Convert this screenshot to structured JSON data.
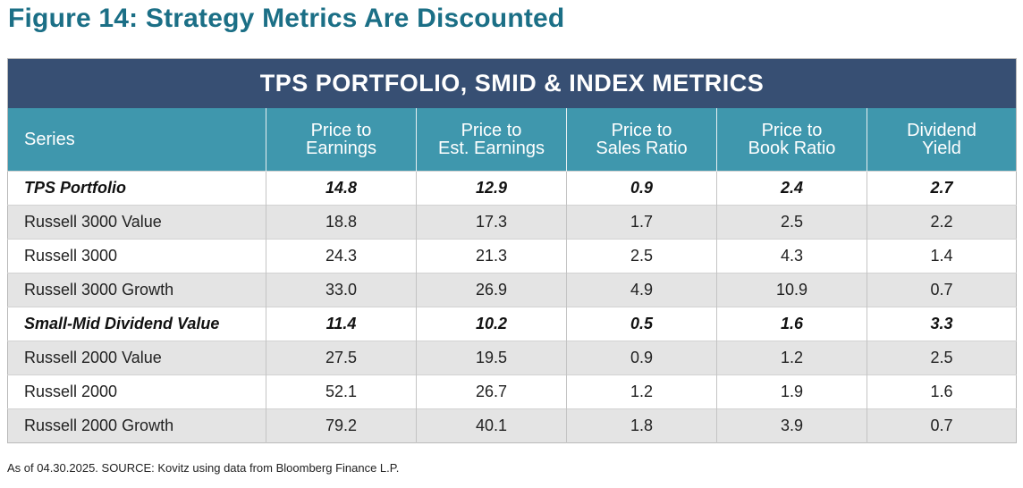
{
  "figure_title": "Figure 14: Strategy Metrics Are Discounted",
  "table": {
    "banner": "TPS PORTFOLIO, SMID & INDEX METRICS",
    "headers": [
      {
        "line1": "Series",
        "line2": ""
      },
      {
        "line1": "Price to",
        "line2": "Earnings"
      },
      {
        "line1": "Price to",
        "line2": "Est. Earnings"
      },
      {
        "line1": "Price to",
        "line2": "Sales Ratio"
      },
      {
        "line1": "Price to",
        "line2": "Book Ratio"
      },
      {
        "line1": "Dividend",
        "line2": "Yield"
      }
    ],
    "rows": [
      {
        "series": "TPS Portfolio",
        "pe": "14.8",
        "pest": "12.9",
        "ps": "0.9",
        "pb": "2.4",
        "dy": "2.7",
        "highlight": true
      },
      {
        "series": "Russell 3000 Value",
        "pe": "18.8",
        "pest": "17.3",
        "ps": "1.7",
        "pb": "2.5",
        "dy": "2.2",
        "highlight": false
      },
      {
        "series": "Russell 3000",
        "pe": "24.3",
        "pest": "21.3",
        "ps": "2.5",
        "pb": "4.3",
        "dy": "1.4",
        "highlight": false
      },
      {
        "series": "Russell 3000 Growth",
        "pe": "33.0",
        "pest": "26.9",
        "ps": "4.9",
        "pb": "10.9",
        "dy": "0.7",
        "highlight": false
      },
      {
        "series": "Small-Mid Dividend Value",
        "pe": "11.4",
        "pest": "10.2",
        "ps": "0.5",
        "pb": "1.6",
        "dy": "3.3",
        "highlight": true
      },
      {
        "series": "Russell 2000 Value",
        "pe": "27.5",
        "pest": "19.5",
        "ps": "0.9",
        "pb": "1.2",
        "dy": "2.5",
        "highlight": false
      },
      {
        "series": "Russell 2000",
        "pe": "52.1",
        "pest": "26.7",
        "ps": "1.2",
        "pb": "1.9",
        "dy": "1.6",
        "highlight": false
      },
      {
        "series": "Russell 2000 Growth",
        "pe": "79.2",
        "pest": "40.1",
        "ps": "1.8",
        "pb": "3.9",
        "dy": "0.7",
        "highlight": false
      }
    ]
  },
  "source_note": "As of 04.30.2025. SOURCE: Kovitz using data from Bloomberg Finance L.P."
}
